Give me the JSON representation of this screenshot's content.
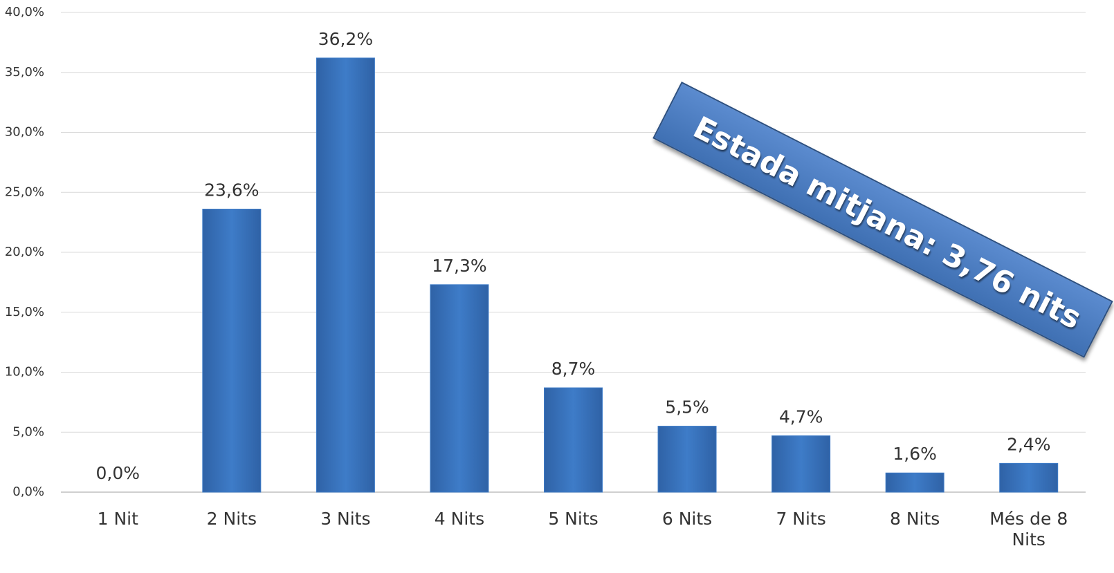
{
  "chart_data": {
    "type": "bar",
    "annotation": "Estada mitjana: 3,76 nits",
    "categories": [
      "1 Nit",
      "2 Nits",
      "3 Nits",
      "4 Nits",
      "5 Nits",
      "6 Nits",
      "7 Nits",
      "8 Nits",
      "Més de 8 Nits"
    ],
    "values": [
      0.0,
      23.6,
      36.2,
      17.3,
      8.7,
      5.5,
      4.7,
      1.6,
      2.4
    ],
    "value_labels": [
      "0,0%",
      "23,6%",
      "36,2%",
      "17,3%",
      "8,7%",
      "5,5%",
      "4,7%",
      "1,6%",
      "2,4%"
    ],
    "color": "#3e7cc8",
    "ylim": [
      0,
      40
    ],
    "yticks": [
      {
        "value": 0,
        "label": "0,0%"
      },
      {
        "value": 5,
        "label": "5,0%"
      },
      {
        "value": 10,
        "label": "10,0%"
      },
      {
        "value": 15,
        "label": "15,0%"
      },
      {
        "value": 20,
        "label": "20,0%"
      },
      {
        "value": 25,
        "label": "25,0%"
      },
      {
        "value": 30,
        "label": "30,0%"
      },
      {
        "value": 35,
        "label": "35,0%"
      },
      {
        "value": 40,
        "label": "40,0%"
      }
    ],
    "grid": true
  }
}
